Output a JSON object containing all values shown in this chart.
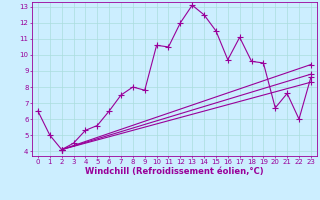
{
  "xlabel": "Windchill (Refroidissement éolien,°C)",
  "background_color": "#cceeff",
  "line_color": "#990099",
  "grid_color": "#aadddd",
  "xlim": [
    -0.5,
    23.5
  ],
  "ylim": [
    3.7,
    13.3
  ],
  "xticks": [
    0,
    1,
    2,
    3,
    4,
    5,
    6,
    7,
    8,
    9,
    10,
    11,
    12,
    13,
    14,
    15,
    16,
    17,
    18,
    19,
    20,
    21,
    22,
    23
  ],
  "yticks": [
    4,
    5,
    6,
    7,
    8,
    9,
    10,
    11,
    12,
    13
  ],
  "line1_x": [
    0,
    1,
    2,
    3,
    4,
    5,
    6,
    7,
    8,
    9,
    10,
    11,
    12,
    13,
    14,
    15,
    16,
    17,
    18,
    19,
    20,
    21,
    22,
    23
  ],
  "line1_y": [
    6.5,
    5.0,
    4.1,
    4.5,
    5.3,
    5.6,
    6.5,
    7.5,
    8.0,
    7.8,
    10.6,
    10.5,
    12.0,
    13.1,
    12.5,
    11.5,
    9.7,
    11.1,
    9.6,
    9.5,
    6.7,
    7.6,
    6.0,
    8.6
  ],
  "line2_x": [
    2,
    23
  ],
  "line2_y": [
    4.1,
    8.3
  ],
  "line3_x": [
    2,
    23
  ],
  "line3_y": [
    4.1,
    8.8
  ],
  "line4_x": [
    2,
    23
  ],
  "line4_y": [
    4.1,
    9.4
  ],
  "marker": "+",
  "markersize": 4,
  "linewidth": 0.8,
  "tick_fontsize": 5,
  "label_fontsize": 6
}
